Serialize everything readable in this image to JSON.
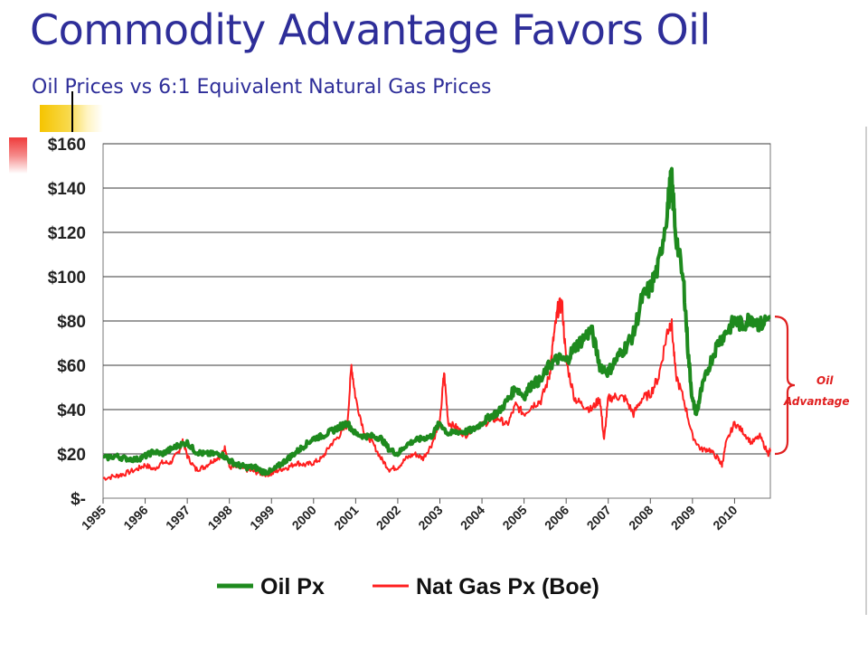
{
  "slide": {
    "title": "Commodity Advantage Favors Oil",
    "subtitle": "Oil Prices vs 6:1 Equivalent Natural Gas Prices"
  },
  "chart_data": {
    "type": "line",
    "title": "",
    "xlabel": "",
    "ylabel": "",
    "xlim": [
      1995,
      2010.85
    ],
    "ylim": [
      0,
      160
    ],
    "grid": true,
    "legend_position": "bottom",
    "y_ticks": [
      {
        "value": 0,
        "label": "$-"
      },
      {
        "value": 20,
        "label": "$20"
      },
      {
        "value": 40,
        "label": "$40"
      },
      {
        "value": 60,
        "label": "$60"
      },
      {
        "value": 80,
        "label": "$80"
      },
      {
        "value": 100,
        "label": "$100"
      },
      {
        "value": 120,
        "label": "$120"
      },
      {
        "value": 140,
        "label": "$140"
      },
      {
        "value": 160,
        "label": "$160"
      }
    ],
    "x_ticks": [
      "1995",
      "1996",
      "1997",
      "1998",
      "1999",
      "2000",
      "2001",
      "2002",
      "2003",
      "2004",
      "2005",
      "2006",
      "2007",
      "2008",
      "2009",
      "2010"
    ],
    "series": [
      {
        "name": "Oil Px",
        "color": "#1e8a1e",
        "points": [
          [
            1995.0,
            18
          ],
          [
            1995.3,
            19
          ],
          [
            1995.5,
            18
          ],
          [
            1995.8,
            17.5
          ],
          [
            1996.0,
            19
          ],
          [
            1996.2,
            21
          ],
          [
            1996.4,
            20
          ],
          [
            1996.6,
            22
          ],
          [
            1996.8,
            24
          ],
          [
            1997.0,
            25
          ],
          [
            1997.2,
            21
          ],
          [
            1997.4,
            20
          ],
          [
            1997.6,
            20
          ],
          [
            1997.8,
            20
          ],
          [
            1998.0,
            17
          ],
          [
            1998.2,
            15
          ],
          [
            1998.4,
            14
          ],
          [
            1998.6,
            14
          ],
          [
            1998.8,
            12
          ],
          [
            1999.0,
            12
          ],
          [
            1999.2,
            15
          ],
          [
            1999.4,
            18
          ],
          [
            1999.6,
            21
          ],
          [
            1999.8,
            24
          ],
          [
            2000.0,
            27
          ],
          [
            2000.2,
            28
          ],
          [
            2000.4,
            30
          ],
          [
            2000.6,
            32
          ],
          [
            2000.8,
            34
          ],
          [
            2001.0,
            29
          ],
          [
            2001.2,
            28
          ],
          [
            2001.4,
            28
          ],
          [
            2001.6,
            27
          ],
          [
            2001.8,
            22
          ],
          [
            2002.0,
            20
          ],
          [
            2002.2,
            24
          ],
          [
            2002.4,
            26
          ],
          [
            2002.6,
            27
          ],
          [
            2002.8,
            28
          ],
          [
            2003.0,
            34
          ],
          [
            2003.2,
            29
          ],
          [
            2003.4,
            30
          ],
          [
            2003.6,
            30
          ],
          [
            2003.8,
            31
          ],
          [
            2004.0,
            34
          ],
          [
            2004.2,
            37
          ],
          [
            2004.4,
            39
          ],
          [
            2004.6,
            44
          ],
          [
            2004.8,
            50
          ],
          [
            2005.0,
            46
          ],
          [
            2005.2,
            52
          ],
          [
            2005.4,
            53
          ],
          [
            2005.6,
            60
          ],
          [
            2005.8,
            63
          ],
          [
            2006.0,
            62
          ],
          [
            2006.2,
            68
          ],
          [
            2006.4,
            72
          ],
          [
            2006.6,
            76
          ],
          [
            2006.8,
            60
          ],
          [
            2007.0,
            57
          ],
          [
            2007.2,
            63
          ],
          [
            2007.4,
            68
          ],
          [
            2007.6,
            74
          ],
          [
            2007.8,
            90
          ],
          [
            2008.0,
            95
          ],
          [
            2008.2,
            105
          ],
          [
            2008.4,
            130
          ],
          [
            2008.5,
            145
          ],
          [
            2008.6,
            120
          ],
          [
            2008.8,
            95
          ],
          [
            2008.9,
            65
          ],
          [
            2009.0,
            44
          ],
          [
            2009.1,
            38
          ],
          [
            2009.2,
            48
          ],
          [
            2009.4,
            60
          ],
          [
            2009.6,
            70
          ],
          [
            2009.8,
            75
          ],
          [
            2010.0,
            80
          ],
          [
            2010.2,
            78
          ],
          [
            2010.4,
            82
          ],
          [
            2010.6,
            78
          ],
          [
            2010.85,
            82
          ]
        ]
      },
      {
        "name": "Nat Gas Px (Boe)",
        "color": "#ff1f1f",
        "points": [
          [
            1995.0,
            9
          ],
          [
            1995.3,
            10
          ],
          [
            1995.5,
            11
          ],
          [
            1995.8,
            13
          ],
          [
            1996.0,
            15
          ],
          [
            1996.2,
            13
          ],
          [
            1996.4,
            16
          ],
          [
            1996.6,
            16
          ],
          [
            1996.8,
            21
          ],
          [
            1996.9,
            26
          ],
          [
            1997.0,
            19
          ],
          [
            1997.2,
            13
          ],
          [
            1997.4,
            14
          ],
          [
            1997.6,
            17
          ],
          [
            1997.8,
            19
          ],
          [
            1997.9,
            23
          ],
          [
            1998.0,
            14
          ],
          [
            1998.2,
            14
          ],
          [
            1998.4,
            13
          ],
          [
            1998.6,
            12
          ],
          [
            1998.8,
            11
          ],
          [
            1999.0,
            11
          ],
          [
            1999.2,
            13
          ],
          [
            1999.4,
            14
          ],
          [
            1999.6,
            16
          ],
          [
            1999.8,
            15
          ],
          [
            2000.0,
            16
          ],
          [
            2000.2,
            18
          ],
          [
            2000.4,
            24
          ],
          [
            2000.6,
            28
          ],
          [
            2000.8,
            33
          ],
          [
            2000.9,
            60
          ],
          [
            2001.0,
            45
          ],
          [
            2001.2,
            30
          ],
          [
            2001.4,
            25
          ],
          [
            2001.6,
            18
          ],
          [
            2001.8,
            13
          ],
          [
            2002.0,
            14
          ],
          [
            2002.2,
            18
          ],
          [
            2002.4,
            20
          ],
          [
            2002.6,
            18
          ],
          [
            2002.8,
            24
          ],
          [
            2003.0,
            34
          ],
          [
            2003.1,
            57
          ],
          [
            2003.2,
            34
          ],
          [
            2003.4,
            32
          ],
          [
            2003.6,
            28
          ],
          [
            2003.8,
            32
          ],
          [
            2004.0,
            33
          ],
          [
            2004.2,
            35
          ],
          [
            2004.4,
            36
          ],
          [
            2004.6,
            33
          ],
          [
            2004.8,
            42
          ],
          [
            2005.0,
            38
          ],
          [
            2005.2,
            42
          ],
          [
            2005.4,
            44
          ],
          [
            2005.6,
            55
          ],
          [
            2005.7,
            72
          ],
          [
            2005.8,
            85
          ],
          [
            2005.9,
            88
          ],
          [
            2006.0,
            62
          ],
          [
            2006.2,
            45
          ],
          [
            2006.4,
            42
          ],
          [
            2006.6,
            40
          ],
          [
            2006.8,
            45
          ],
          [
            2006.9,
            26
          ],
          [
            2007.0,
            45
          ],
          [
            2007.2,
            46
          ],
          [
            2007.4,
            45
          ],
          [
            2007.6,
            38
          ],
          [
            2007.8,
            45
          ],
          [
            2008.0,
            47
          ],
          [
            2008.2,
            55
          ],
          [
            2008.4,
            75
          ],
          [
            2008.5,
            80
          ],
          [
            2008.6,
            56
          ],
          [
            2008.8,
            44
          ],
          [
            2009.0,
            28
          ],
          [
            2009.2,
            22
          ],
          [
            2009.4,
            22
          ],
          [
            2009.6,
            18
          ],
          [
            2009.7,
            15
          ],
          [
            2009.8,
            25
          ],
          [
            2010.0,
            34
          ],
          [
            2010.2,
            30
          ],
          [
            2010.4,
            25
          ],
          [
            2010.6,
            28
          ],
          [
            2010.8,
            20
          ],
          [
            2010.85,
            22
          ]
        ]
      }
    ],
    "annotations": [
      {
        "text_lines": [
          "Oil",
          "Advantage"
        ],
        "color": "#e02020"
      }
    ]
  }
}
